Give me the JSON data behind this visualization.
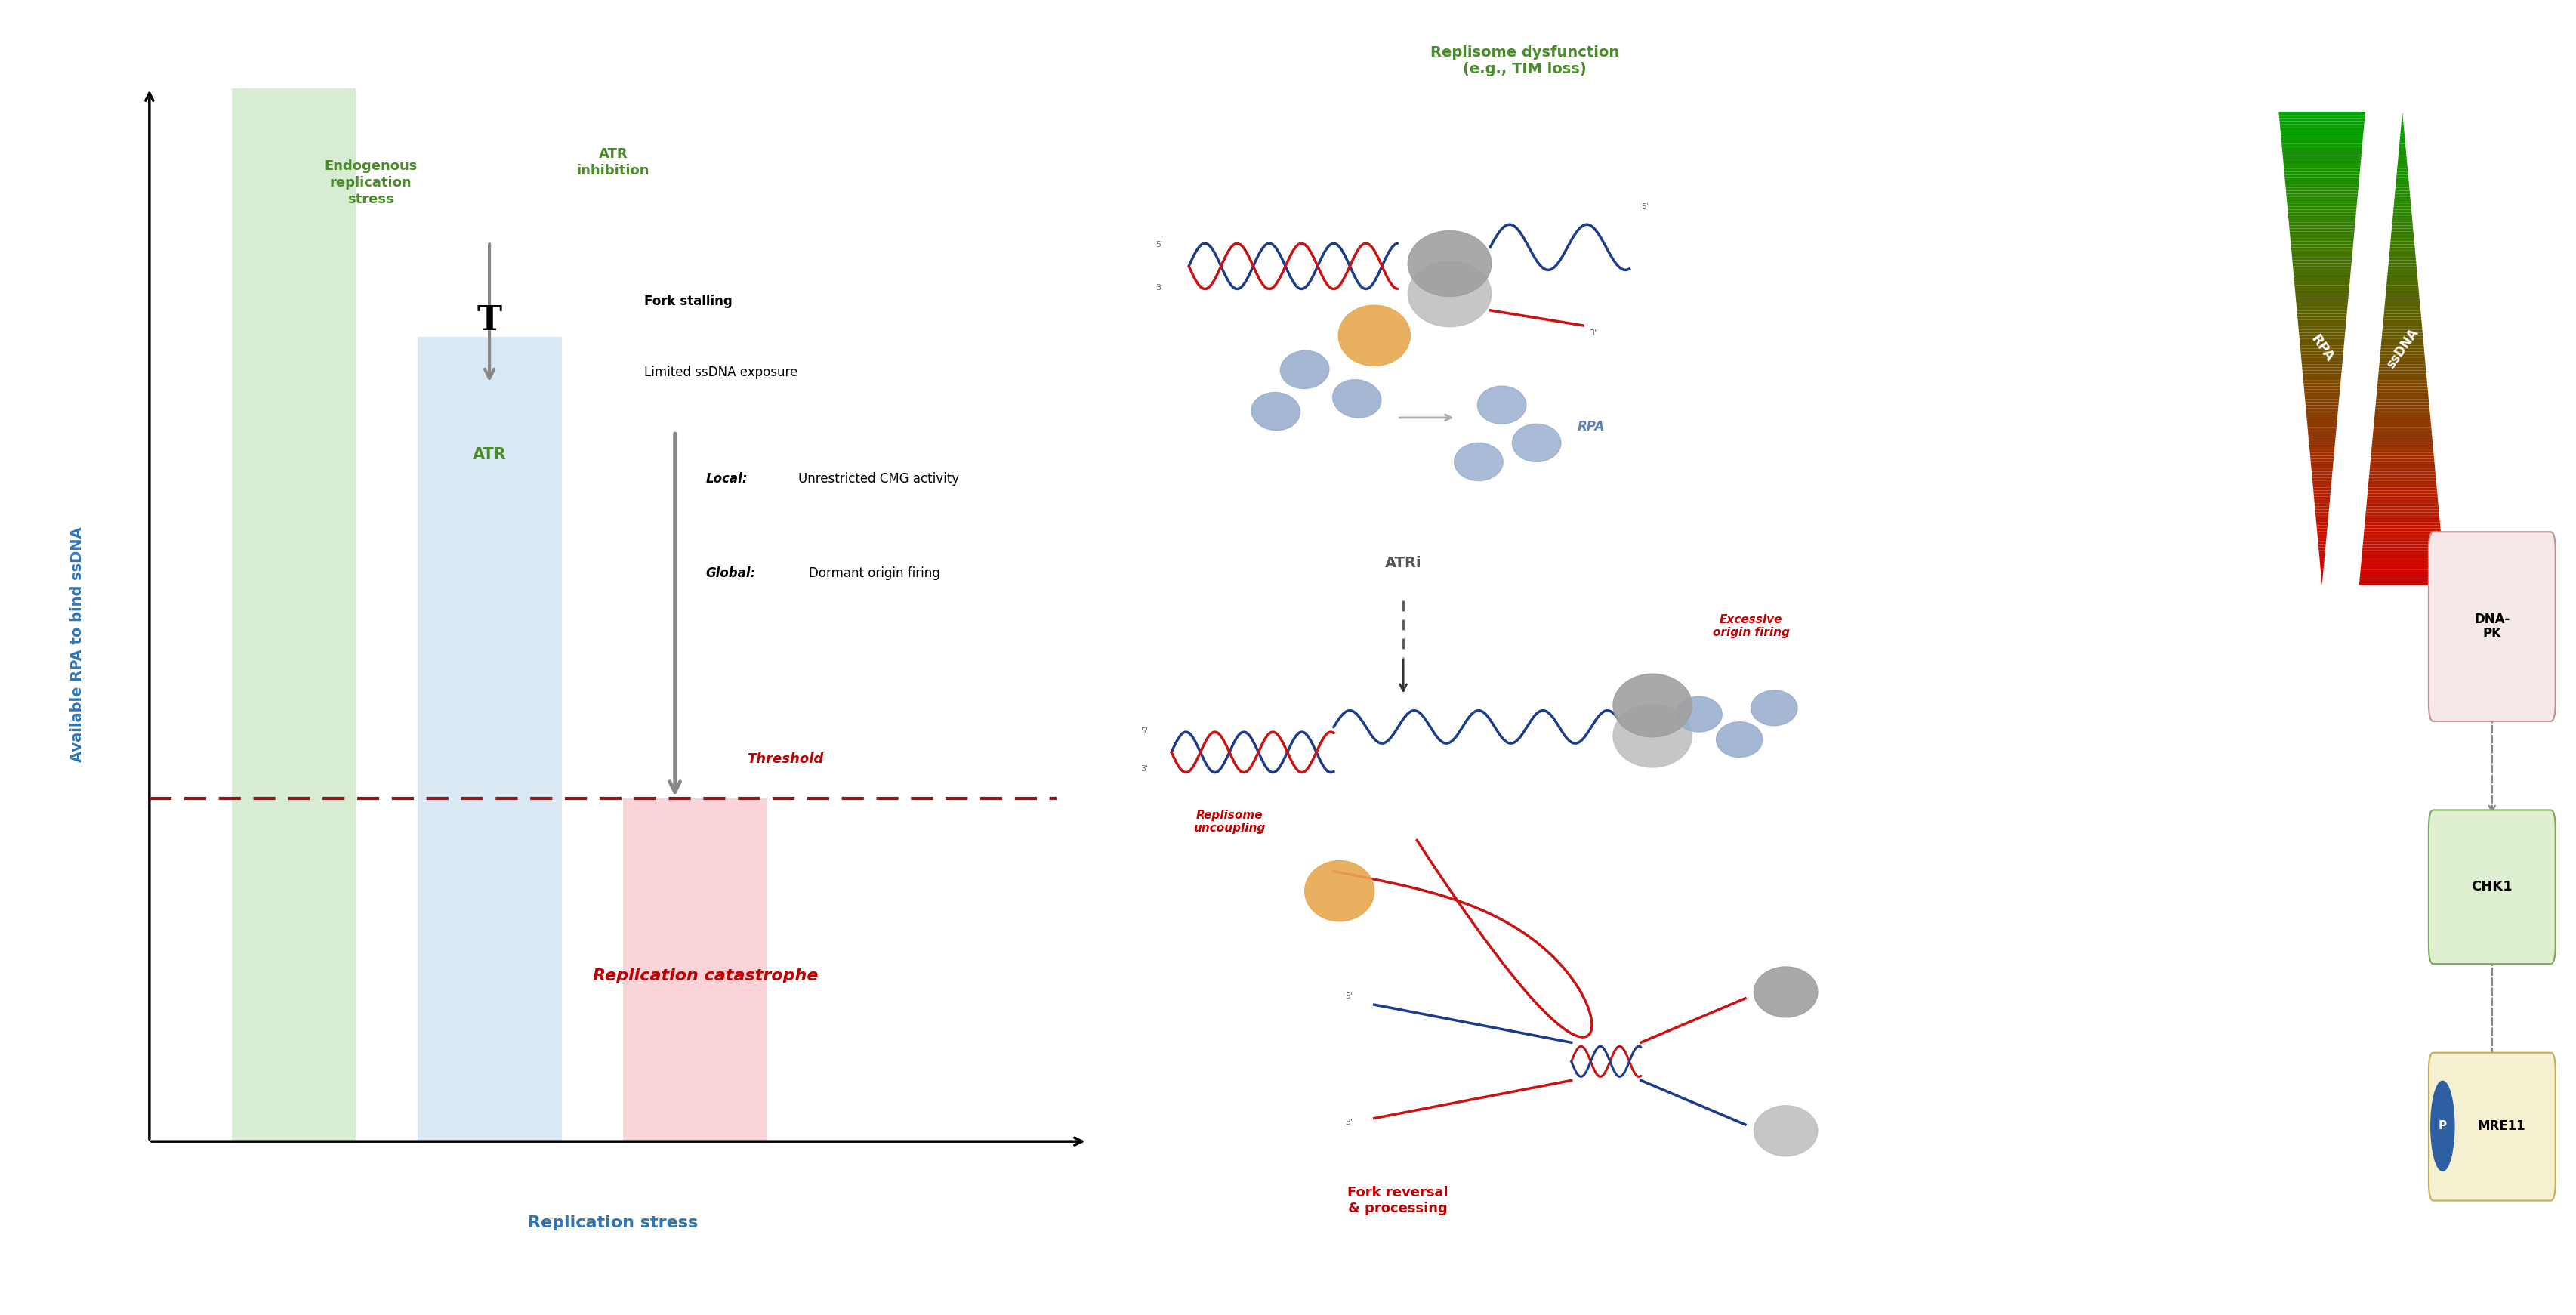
{
  "fig_width": 34.11,
  "fig_height": 17.41,
  "bg_color": "#ffffff",
  "ylabel": "Available RPA to bind ssDNA",
  "ylabel_color": "#2e75b6",
  "xlabel": "Replication stress",
  "xlabel_color": "#2e75b6",
  "threshold_label": "Threshold",
  "threshold_color": "#8b1a1a",
  "green_bar_color": "#b8ddb0",
  "blue_bar_color": "#c5dcee",
  "pink_bar_color": "#f8c8cf",
  "endogenous_label": "Endogenous\nreplication\nstress",
  "endogenous_color": "#4a8c2a",
  "atr_inhibition_label": "ATR\ninhibition",
  "atr_inhibition_color": "#4a8c2a",
  "atr_label": "ATR",
  "atr_color": "#4a8c2a",
  "fork_stalling_line1": "Fork stalling",
  "fork_stalling_line2": "Limited ssDNA exposure",
  "local_bold": "Local:",
  "local_text": "Unrestricted CMG activity",
  "global_bold": "Global:",
  "global_text": "Dormant origin firing",
  "replication_catastrophe": "Replication catastrophe",
  "replication_catastrophe_color": "#c00000",
  "replisome_dysfunction": "Replisome dysfunction\n(e.g., TIM loss)",
  "replisome_dysfunction_color": "#4a8c2a",
  "rpa_label": "RPA",
  "rpa_color": "#5a7fbf",
  "atri_label": "ATRi",
  "atri_color": "#595959",
  "excessive_origin": "Excessive\norigin firing",
  "excessive_origin_color": "#c00000",
  "replisome_uncoupling": "Replisome\nuncoupling",
  "replisome_uncoupling_color": "#c00000",
  "fork_reversal": "Fork reversal\n& processing",
  "fork_reversal_color": "#c00000",
  "dna_pk_label": "DNA-\nPK",
  "chk1_label": "CHK1",
  "mre11_label": "MRE11",
  "dna_strand_blue": "#1a3c8a",
  "dna_strand_red": "#cc1111",
  "helicase_color": "#a0a0a0",
  "rpa_blob_color": "#9aafcf",
  "polymerase_color": "#e8a850",
  "p_circle_color": "#2e5fa3"
}
